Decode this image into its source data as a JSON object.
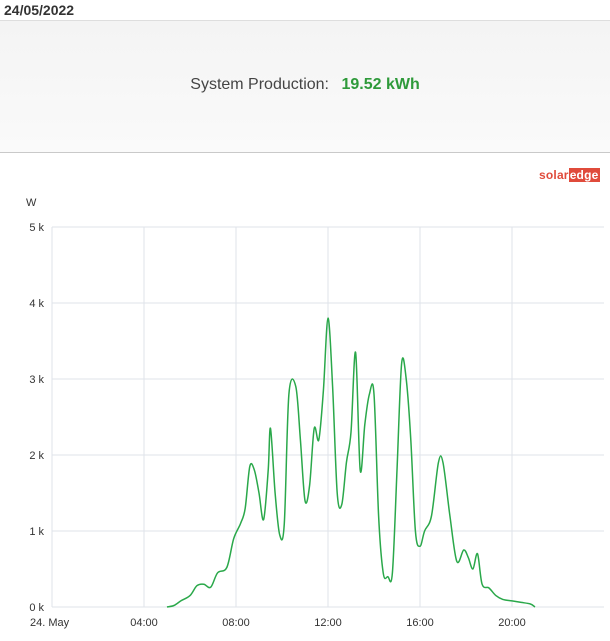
{
  "header": {
    "date": "24/05/2022"
  },
  "summary": {
    "label": "System Production:",
    "value": "19.52 kWh"
  },
  "logo": {
    "part1": "solar",
    "part2": "edge"
  },
  "colors": {
    "line": "#2aa84a",
    "value": "#2e9a3a",
    "grid": "#dfe3ea",
    "logo": "#e04b3b"
  },
  "chart_data": {
    "type": "line",
    "ylabel": "W",
    "ylim": [
      0,
      5000
    ],
    "y_ticks": [
      {
        "value": 0,
        "label": "0 k"
      },
      {
        "value": 1000,
        "label": "1 k"
      },
      {
        "value": 2000,
        "label": "2 k"
      },
      {
        "value": 3000,
        "label": "3 k"
      },
      {
        "value": 4000,
        "label": "4 k"
      },
      {
        "value": 5000,
        "label": "5 k"
      }
    ],
    "xlim": [
      0,
      24
    ],
    "x_ticks": [
      {
        "value": 0,
        "label": "24. May"
      },
      {
        "value": 4,
        "label": "04:00"
      },
      {
        "value": 8,
        "label": "08:00"
      },
      {
        "value": 12,
        "label": "12:00"
      },
      {
        "value": 16,
        "label": "16:00"
      },
      {
        "value": 20,
        "label": "20:00"
      }
    ],
    "series": [
      {
        "points": [
          [
            5.0,
            0
          ],
          [
            5.3,
            20
          ],
          [
            5.6,
            80
          ],
          [
            6.0,
            150
          ],
          [
            6.3,
            280
          ],
          [
            6.6,
            300
          ],
          [
            6.9,
            260
          ],
          [
            7.2,
            450
          ],
          [
            7.6,
            520
          ],
          [
            7.9,
            900
          ],
          [
            8.2,
            1100
          ],
          [
            8.4,
            1300
          ],
          [
            8.6,
            1850
          ],
          [
            8.8,
            1800
          ],
          [
            9.0,
            1500
          ],
          [
            9.2,
            1150
          ],
          [
            9.4,
            1800
          ],
          [
            9.5,
            2350
          ],
          [
            9.7,
            1500
          ],
          [
            9.9,
            950
          ],
          [
            10.1,
            1100
          ],
          [
            10.3,
            2800
          ],
          [
            10.6,
            2900
          ],
          [
            10.8,
            2200
          ],
          [
            11.0,
            1400
          ],
          [
            11.2,
            1600
          ],
          [
            11.4,
            2350
          ],
          [
            11.6,
            2200
          ],
          [
            11.8,
            2850
          ],
          [
            12.0,
            3800
          ],
          [
            12.2,
            2900
          ],
          [
            12.4,
            1500
          ],
          [
            12.6,
            1350
          ],
          [
            12.8,
            1900
          ],
          [
            13.0,
            2300
          ],
          [
            13.2,
            3350
          ],
          [
            13.4,
            1800
          ],
          [
            13.6,
            2400
          ],
          [
            13.8,
            2800
          ],
          [
            14.0,
            2800
          ],
          [
            14.2,
            1200
          ],
          [
            14.4,
            450
          ],
          [
            14.6,
            400
          ],
          [
            14.8,
            450
          ],
          [
            15.0,
            1800
          ],
          [
            15.2,
            3200
          ],
          [
            15.4,
            3000
          ],
          [
            15.6,
            2200
          ],
          [
            15.8,
            1000
          ],
          [
            16.0,
            800
          ],
          [
            16.2,
            1000
          ],
          [
            16.5,
            1200
          ],
          [
            16.8,
            1900
          ],
          [
            17.0,
            1900
          ],
          [
            17.3,
            1200
          ],
          [
            17.6,
            600
          ],
          [
            17.9,
            750
          ],
          [
            18.1,
            650
          ],
          [
            18.3,
            500
          ],
          [
            18.5,
            700
          ],
          [
            18.7,
            300
          ],
          [
            19.0,
            250
          ],
          [
            19.3,
            150
          ],
          [
            19.6,
            100
          ],
          [
            20.0,
            80
          ],
          [
            20.4,
            60
          ],
          [
            20.8,
            40
          ],
          [
            21.0,
            0
          ]
        ]
      }
    ]
  }
}
